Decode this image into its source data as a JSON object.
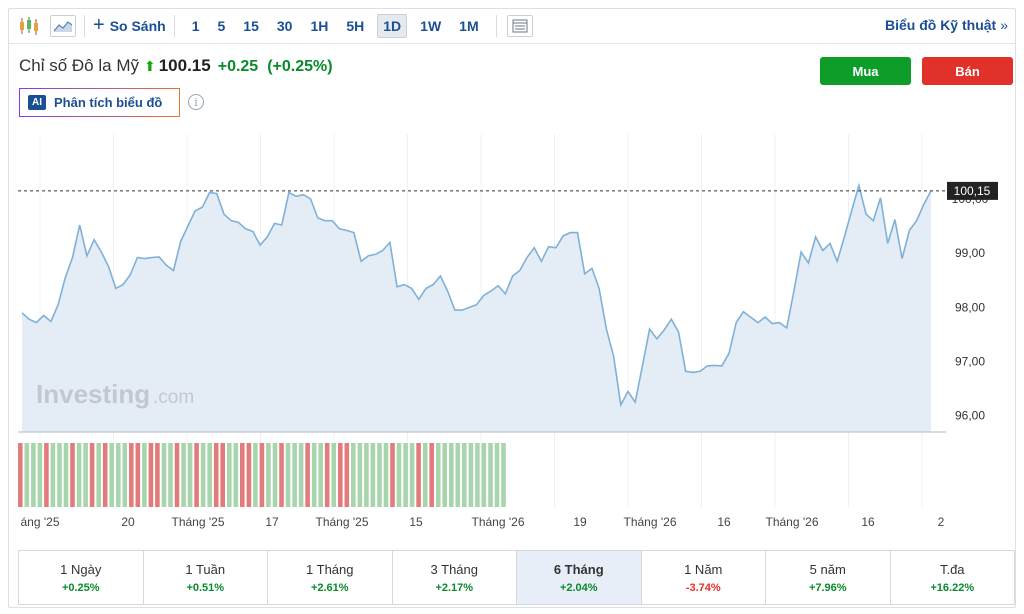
{
  "toolbar": {
    "compare_label": "So Sánh",
    "intervals": [
      "1",
      "5",
      "15",
      "30",
      "1H",
      "5H",
      "1D",
      "1W",
      "1M"
    ],
    "active_interval": "1D",
    "tech_chart_link": "Biểu đồ Kỹ thuật",
    "tech_chart_arrows": "»"
  },
  "instrument": {
    "name": "Chỉ số Đô la Mỹ",
    "price": "100.15",
    "change": "+0.25",
    "change_pct": "(+0.25%)",
    "up_color": "#0a8a2d"
  },
  "actions": {
    "buy_label": "Mua",
    "sell_label": "Bán"
  },
  "ai": {
    "badge": "AI",
    "label": "Phân tích biểu đồ",
    "info": "i"
  },
  "watermark": {
    "brand": "Investing",
    "suffix": ".com"
  },
  "chart_data": {
    "type": "area",
    "y_ticks": [
      "96,00",
      "97,00",
      "98,00",
      "99,00",
      "100,00"
    ],
    "ylim": [
      95.7,
      101.2
    ],
    "last_value_label": "100,15",
    "last_value": 100.15,
    "x_tick_labels": [
      "áng '25",
      "20",
      "Tháng '25",
      "17",
      "Tháng '25",
      "15",
      "Tháng '26",
      "19",
      "Tháng '26",
      "16",
      "Tháng '26",
      "16",
      "2"
    ],
    "values": [
      97.9,
      97.78,
      97.72,
      97.85,
      97.74,
      98.05,
      98.55,
      98.92,
      99.52,
      98.95,
      99.25,
      99.02,
      98.75,
      98.35,
      98.42,
      98.6,
      98.92,
      98.9,
      98.92,
      98.93,
      98.78,
      98.68,
      99.22,
      99.5,
      99.78,
      99.85,
      100.12,
      100.1,
      99.72,
      99.6,
      99.57,
      99.45,
      99.4,
      99.15,
      99.3,
      99.55,
      99.52,
      100.12,
      100.05,
      100.08,
      100.0,
      99.65,
      99.6,
      99.6,
      99.45,
      99.42,
      99.38,
      98.85,
      98.95,
      98.98,
      99.05,
      99.2,
      98.38,
      98.42,
      98.35,
      98.15,
      98.35,
      98.42,
      98.58,
      98.3,
      97.95,
      97.95,
      98.0,
      98.05,
      98.22,
      98.3,
      98.4,
      98.25,
      98.58,
      98.68,
      98.92,
      99.1,
      98.85,
      99.12,
      99.1,
      99.32,
      99.38,
      99.38,
      98.62,
      98.72,
      98.35,
      97.6,
      97.1,
      96.2,
      96.45,
      96.25,
      96.92,
      97.6,
      97.42,
      97.58,
      97.78,
      97.55,
      96.82,
      96.8,
      96.82,
      96.92,
      96.93,
      96.92,
      97.15,
      97.72,
      97.92,
      97.82,
      97.72,
      97.82,
      97.7,
      97.72,
      97.62,
      98.3,
      99.02,
      98.82,
      99.3,
      99.05,
      99.18,
      98.85,
      99.3,
      99.78,
      100.25,
      99.72,
      99.6,
      100.02,
      99.18,
      99.62,
      98.9,
      99.42,
      99.6,
      99.9,
      100.15
    ],
    "volume_colors": [
      "r",
      "g",
      "g",
      "g",
      "r",
      "g",
      "g",
      "g",
      "r",
      "g",
      "g",
      "r",
      "g",
      "r",
      "g",
      "g",
      "g",
      "r",
      "r",
      "g",
      "r",
      "r",
      "g",
      "g",
      "r",
      "g",
      "g",
      "r",
      "g",
      "g",
      "r",
      "r",
      "g",
      "g",
      "r",
      "r",
      "g",
      "r",
      "g",
      "g",
      "r",
      "g",
      "g",
      "g",
      "r",
      "g",
      "g",
      "r",
      "g",
      "r",
      "r",
      "g",
      "g",
      "g",
      "g",
      "g",
      "g",
      "r",
      "g",
      "g",
      "g",
      "r",
      "g",
      "r",
      "g",
      "g",
      "g",
      "g",
      "g",
      "g",
      "g",
      "g",
      "g",
      "g",
      "g"
    ],
    "colors": {
      "line": "#7fb1d8",
      "fill": "#e4edf5",
      "up_bar": "#a9d5ae",
      "down_bar": "#e27c7c"
    }
  },
  "periods": [
    {
      "label": "1 Ngày",
      "value": "+0.25%",
      "dir": "up"
    },
    {
      "label": "1 Tuần",
      "value": "+0.51%",
      "dir": "up"
    },
    {
      "label": "1 Tháng",
      "value": "+2.61%",
      "dir": "up"
    },
    {
      "label": "3 Tháng",
      "value": "+2.17%",
      "dir": "up"
    },
    {
      "label": "6 Tháng",
      "value": "+2.04%",
      "dir": "up",
      "active": true
    },
    {
      "label": "1 Năm",
      "value": "-3.74%",
      "dir": "down"
    },
    {
      "label": "5 năm",
      "value": "+7.96%",
      "dir": "up"
    },
    {
      "label": "T.đa",
      "value": "+16.22%",
      "dir": "up"
    }
  ]
}
